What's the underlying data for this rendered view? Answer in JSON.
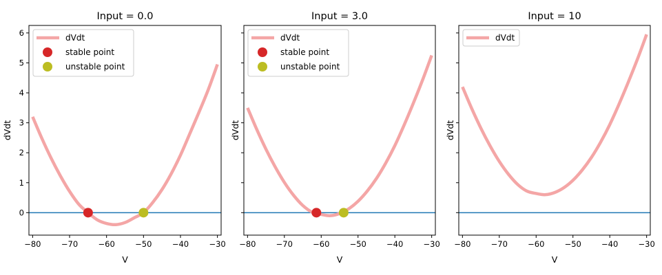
{
  "chart_data": [
    {
      "type": "line",
      "title": "Input = 0.0",
      "xlabel": "V",
      "ylabel": "dVdt",
      "xlim": [
        -81,
        -29
      ],
      "ylim": [
        -0.75,
        6.25
      ],
      "xticks": [
        -80,
        -70,
        -60,
        -50,
        -40,
        -30
      ],
      "yticks": [
        0,
        1,
        2,
        3,
        4,
        5,
        6
      ],
      "show_yticklabels": true,
      "legend_position": "top-left",
      "curve": {
        "name": "dVdt",
        "x": [
          -80,
          -77.5,
          -75,
          -72.5,
          -70,
          -67.5,
          -65,
          -62.5,
          -60,
          -57.5,
          -55,
          -52.5,
          -50,
          -47.5,
          -45,
          -42.5,
          -40,
          -37.5,
          -35,
          -32.5,
          -30
        ],
        "y": [
          3.2,
          2.48,
          1.82,
          1.23,
          0.71,
          0.28,
          0.0,
          -0.24,
          -0.36,
          -0.4,
          -0.33,
          -0.17,
          0.0,
          0.34,
          0.77,
          1.3,
          1.92,
          2.63,
          3.35,
          4.1,
          4.95
        ]
      },
      "zero_line": {
        "y": 0
      },
      "points": [
        {
          "name": "stable point",
          "x": -65,
          "y": 0,
          "color": "#d62728"
        },
        {
          "name": "unstable point",
          "x": -50,
          "y": 0,
          "color": "#bcbd22"
        }
      ]
    },
    {
      "type": "line",
      "title": "Input = 3.0",
      "xlabel": "V",
      "ylabel": "dVdt",
      "xlim": [
        -81,
        -29
      ],
      "ylim": [
        -0.75,
        6.25
      ],
      "xticks": [
        -80,
        -70,
        -60,
        -50,
        -40,
        -30
      ],
      "yticks": [
        0,
        1,
        2,
        3,
        4,
        5,
        6
      ],
      "show_yticklabels": false,
      "legend_position": "top-left",
      "curve": {
        "name": "dVdt",
        "x": [
          -80,
          -77.5,
          -75,
          -72.5,
          -70,
          -67.5,
          -65,
          -62.5,
          -60,
          -57.5,
          -55,
          -52.5,
          -50,
          -47.5,
          -45,
          -42.5,
          -40,
          -37.5,
          -35,
          -32.5,
          -30
        ],
        "y": [
          3.5,
          2.78,
          2.12,
          1.53,
          1.01,
          0.58,
          0.24,
          0.02,
          -0.06,
          -0.1,
          -0.03,
          0.13,
          0.38,
          0.72,
          1.14,
          1.65,
          2.24,
          2.92,
          3.65,
          4.42,
          5.25
        ]
      },
      "zero_line": {
        "y": 0
      },
      "points": [
        {
          "name": "stable point",
          "x": -61.3,
          "y": 0,
          "color": "#d62728"
        },
        {
          "name": "unstable point",
          "x": -53.9,
          "y": 0,
          "color": "#bcbd22"
        }
      ]
    },
    {
      "type": "line",
      "title": "Input = 10",
      "xlabel": "V",
      "ylabel": "dVdt",
      "xlim": [
        -81,
        -29
      ],
      "ylim": [
        -0.75,
        6.25
      ],
      "xticks": [
        -80,
        -70,
        -60,
        -50,
        -40,
        -30
      ],
      "yticks": [
        0,
        1,
        2,
        3,
        4,
        5,
        6
      ],
      "show_yticklabels": false,
      "legend_position": "top-left",
      "curve": {
        "name": "dVdt",
        "x": [
          -80,
          -77.5,
          -75,
          -72.5,
          -70,
          -67.5,
          -65,
          -62.5,
          -60,
          -57.5,
          -55,
          -52.5,
          -50,
          -47.5,
          -45,
          -42.5,
          -40,
          -37.5,
          -35,
          -32.5,
          -30
        ],
        "y": [
          4.2,
          3.48,
          2.82,
          2.23,
          1.71,
          1.28,
          0.94,
          0.72,
          0.64,
          0.6,
          0.67,
          0.83,
          1.08,
          1.42,
          1.84,
          2.35,
          2.94,
          3.62,
          4.35,
          5.12,
          5.95
        ]
      },
      "zero_line": {
        "y": 0
      },
      "points": []
    }
  ],
  "colors": {
    "curve": "#f4a6a6",
    "zero_line": "#1f77b4",
    "axes": "#000000",
    "legend_border": "#cccccc"
  }
}
